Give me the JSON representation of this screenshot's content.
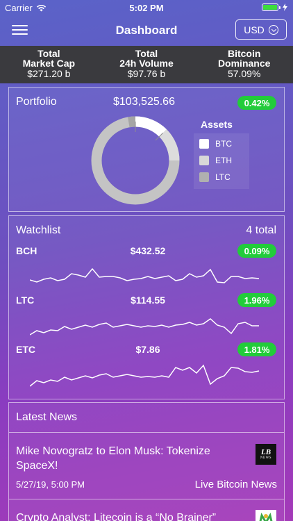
{
  "status_bar": {
    "carrier": "Carrier",
    "time": "5:02 PM"
  },
  "nav": {
    "title": "Dashboard",
    "currency": "USD"
  },
  "stats": [
    {
      "label_line1": "Total",
      "label_line2": "Market Cap",
      "value": "$271.20 b"
    },
    {
      "label_line1": "Total",
      "label_line2": "24h Volume",
      "value": "$97.76 b"
    },
    {
      "label_line1": "Bitcoin",
      "label_line2": "Dominance",
      "value": "57.09%"
    }
  ],
  "portfolio": {
    "title": "Portfolio",
    "value": "$103,525.66",
    "change": "0.42%",
    "assets_title": "Assets",
    "assets": [
      {
        "name": "BTC",
        "color": "#ffffff"
      },
      {
        "name": "ETH",
        "color": "#d8d8d8"
      },
      {
        "name": "LTC",
        "color": "#b0b0b0"
      }
    ]
  },
  "watchlist": {
    "title": "Watchlist",
    "total": "4 total",
    "coins": [
      {
        "symbol": "BCH",
        "price": "$432.52",
        "change": "0.09%",
        "spark": [
          30,
          33,
          29,
          27,
          31,
          29,
          21,
          23,
          26,
          14,
          26,
          25,
          25,
          27,
          31,
          29,
          28,
          25,
          28,
          26,
          24,
          31,
          29,
          21,
          26,
          24,
          15,
          33,
          34,
          25,
          25,
          28,
          27,
          28
        ]
      },
      {
        "symbol": "LTC",
        "price": "$114.55",
        "change": "1.96%",
        "spark": [
          38,
          32,
          35,
          31,
          32,
          26,
          30,
          27,
          24,
          27,
          23,
          21,
          27,
          25,
          23,
          25,
          27,
          25,
          26,
          24,
          27,
          24,
          23,
          20,
          24,
          22,
          15,
          24,
          27,
          36,
          22,
          20,
          25,
          25
        ]
      },
      {
        "symbol": "ETC",
        "price": "$7.86",
        "change": "1.81%",
        "spark": [
          41,
          33,
          36,
          32,
          34,
          28,
          32,
          29,
          26,
          29,
          25,
          23,
          28,
          26,
          24,
          26,
          28,
          27,
          28,
          26,
          28,
          14,
          18,
          14,
          22,
          11,
          38,
          30,
          26,
          14,
          15,
          20,
          21,
          19
        ]
      }
    ]
  },
  "news": {
    "title": "Latest News",
    "items": [
      {
        "headline": "Mike Novogratz to Elon Musk: Tokenize SpaceX!",
        "date": "5/27/19, 5:00 PM",
        "source": "Live Bitcoin News",
        "logo_text": "LB",
        "logo_sub": "NEWS"
      },
      {
        "headline": "Crypto Analyst: Litecoin is a “No Brainer”"
      }
    ]
  }
}
